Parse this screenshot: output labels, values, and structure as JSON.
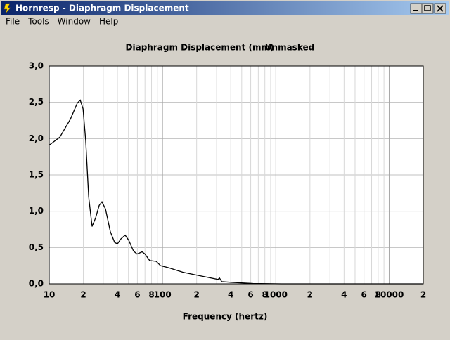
{
  "window": {
    "title": "Hornresp - Diaphragm Displacement",
    "menu": [
      "File",
      "Tools",
      "Window",
      "Help"
    ]
  },
  "chart_data": {
    "type": "line",
    "title": "Diaphragm Displacement (mm)",
    "subtitle": "Unmasked",
    "x_label": "Frequency (hertz)",
    "xscale": "log",
    "grid": true,
    "xlim": [
      10,
      20000
    ],
    "ylim": [
      0,
      3
    ],
    "yticks": [
      {
        "value": 0,
        "label": "0,0"
      },
      {
        "value": 0.5,
        "label": "0,5"
      },
      {
        "value": 1,
        "label": "1,0"
      },
      {
        "value": 1.5,
        "label": "1,5"
      },
      {
        "value": 2,
        "label": "2,0"
      },
      {
        "value": 2.5,
        "label": "2,5"
      },
      {
        "value": 3,
        "label": "3,0"
      }
    ],
    "xticks": [
      10,
      {
        "value": 20,
        "label": "2"
      },
      {
        "value": 40,
        "label": "4"
      },
      {
        "value": 60,
        "label": "6"
      },
      {
        "value": 80,
        "label": "8"
      },
      100,
      {
        "value": 200,
        "label": "2"
      },
      {
        "value": 400,
        "label": "4"
      },
      {
        "value": 600,
        "label": "6"
      },
      {
        "value": 800,
        "label": "8"
      },
      1000,
      {
        "value": 2000,
        "label": "2"
      },
      {
        "value": 4000,
        "label": "4"
      },
      {
        "value": 6000,
        "label": "6"
      },
      {
        "value": 8000,
        "label": "8"
      },
      10000,
      {
        "value": 20000,
        "label": "2"
      }
    ],
    "xminor_ticks": [
      30,
      50,
      70,
      90,
      300,
      500,
      700,
      900,
      3000,
      5000,
      7000,
      9000
    ],
    "series": [
      {
        "color": "#000000",
        "x": [
          10,
          12.4,
          15.4,
          17.7,
          18.8,
          19.9,
          21,
          22.3,
          23.9,
          25.7,
          27.6,
          29.2,
          31.4,
          34.6,
          37.8,
          40,
          43,
          46.8,
          50.3,
          55.5,
          59.6,
          66,
          70,
          77,
          88,
          96,
          114,
          151,
          200,
          268,
          309,
          318,
          333,
          410,
          630,
          1120,
          20000
        ],
        "values": [
          1.91,
          2.02,
          2.27,
          2.49,
          2.53,
          2.41,
          1.97,
          1.2,
          0.79,
          0.91,
          1.08,
          1.13,
          1.03,
          0.72,
          0.57,
          0.55,
          0.62,
          0.67,
          0.6,
          0.45,
          0.41,
          0.44,
          0.41,
          0.32,
          0.31,
          0.25,
          0.22,
          0.16,
          0.12,
          0.08,
          0.06,
          0.08,
          0.03,
          0.02,
          0.005,
          0,
          0
        ]
      }
    ]
  }
}
